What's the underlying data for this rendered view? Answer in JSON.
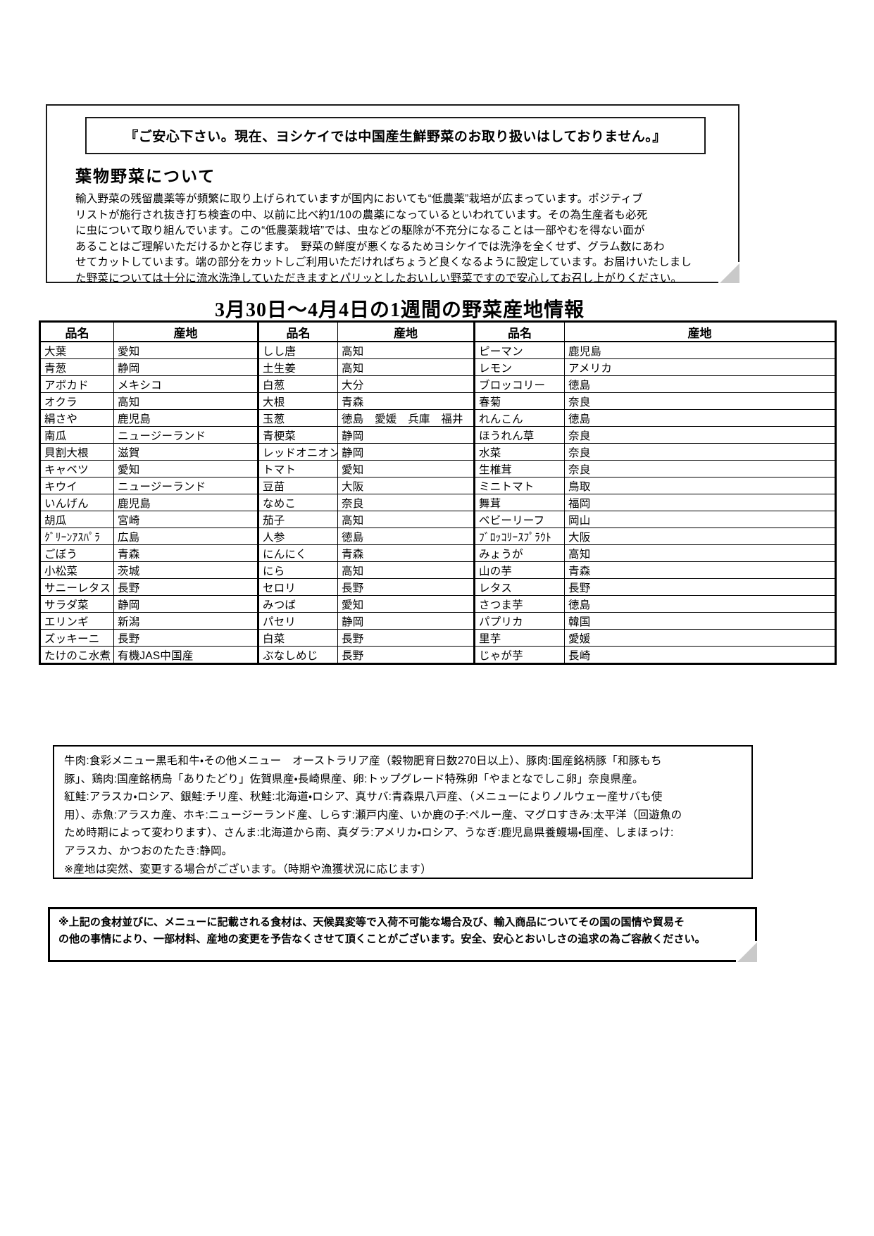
{
  "banner": {
    "text": "『ご安心下さい。現在、ヨシケイでは中国産生鮮野菜のお取り扱いはしておりません。』"
  },
  "intro": {
    "heading": "葉物野菜について",
    "body_lines": [
      "輸入野菜の残留農薬等が頻繁に取り上げられていますが国内においても“低農薬”栽培が広まっています。ポジティブ",
      "リストが施行され抜き打ち検査の中、以前に比べ約1/10の農薬になっているといわれています。その為生産者も必死",
      "に虫について取り組んでいます。この“低農薬栽培”では、虫などの駆除が不充分になることは一部やむを得ない面が",
      "あることはご理解いただけるかと存じます。　野菜の鮮度が悪くなるためヨシケイでは洗浄を全くせず、グラム数にあわ",
      "せてカットしています。端の部分をカットしご利用いただければちょうど良くなるように設定しています。お届けいたしまし",
      "た野菜については十分に流水洗浄していただきますとパリッとしたおいしい野菜ですので安心してお召し上がりください。"
    ]
  },
  "table": {
    "title": "3月30日～4月4日の1週間の野菜産地情報",
    "header_name": "品名",
    "header_origin": "産地",
    "groups": [
      {
        "rows": [
          {
            "name": "大葉",
            "origin": "愛知"
          },
          {
            "name": "青葱",
            "origin": "静岡"
          },
          {
            "name": "アボカド",
            "origin": "メキシコ"
          },
          {
            "name": "オクラ",
            "origin": "高知"
          },
          {
            "name": "絹さや",
            "origin": "鹿児島"
          },
          {
            "name": "南瓜",
            "origin": "ニュージーランド"
          },
          {
            "name": "貝割大根",
            "origin": "滋賀"
          },
          {
            "name": "キャベツ",
            "origin": "愛知"
          },
          {
            "name": "キウイ",
            "origin": "ニュージーランド"
          },
          {
            "name": "いんげん",
            "origin": "鹿児島"
          },
          {
            "name": "胡瓜",
            "origin": "宮崎"
          },
          {
            "name": "ｸﾞﾘｰﾝｱｽﾊﾟﾗ",
            "origin": "広島"
          },
          {
            "name": "ごぼう",
            "origin": "青森"
          },
          {
            "name": "小松菜",
            "origin": "茨城"
          },
          {
            "name": "サニーレタス",
            "origin": "長野"
          },
          {
            "name": "サラダ菜",
            "origin": "静岡"
          },
          {
            "name": "エリンギ",
            "origin": "新潟"
          },
          {
            "name": "ズッキーニ",
            "origin": "長野"
          },
          {
            "name": "たけのこ水煮",
            "origin": "有機JAS中国産"
          }
        ]
      },
      {
        "rows": [
          {
            "name": "しし唐",
            "origin": "高知"
          },
          {
            "name": "土生姜",
            "origin": "高知"
          },
          {
            "name": "白葱",
            "origin": "大分"
          },
          {
            "name": "大根",
            "origin": "青森"
          },
          {
            "name": "玉葱",
            "origin": "徳島　愛媛　兵庫　福井"
          },
          {
            "name": "青梗菜",
            "origin": "静岡"
          },
          {
            "name": "レッドオニオン",
            "origin": "静岡"
          },
          {
            "name": "トマト",
            "origin": "愛知"
          },
          {
            "name": "豆苗",
            "origin": "大阪"
          },
          {
            "name": "なめこ",
            "origin": "奈良"
          },
          {
            "name": "茄子",
            "origin": "高知"
          },
          {
            "name": "人参",
            "origin": "徳島"
          },
          {
            "name": "にんにく",
            "origin": "青森"
          },
          {
            "name": "にら",
            "origin": "高知"
          },
          {
            "name": "セロリ",
            "origin": "長野"
          },
          {
            "name": "みつば",
            "origin": "愛知"
          },
          {
            "name": "パセリ",
            "origin": "静岡"
          },
          {
            "name": "白菜",
            "origin": "長野"
          },
          {
            "name": "ぶなしめじ",
            "origin": "長野"
          }
        ]
      },
      {
        "rows": [
          {
            "name": "ピーマン",
            "origin": "鹿児島"
          },
          {
            "name": "レモン",
            "origin": "アメリカ"
          },
          {
            "name": "ブロッコリー",
            "origin": "徳島"
          },
          {
            "name": "春菊",
            "origin": "奈良"
          },
          {
            "name": "れんこん",
            "origin": "徳島"
          },
          {
            "name": "ほうれん草",
            "origin": "奈良"
          },
          {
            "name": "水菜",
            "origin": "奈良"
          },
          {
            "name": "生椎茸",
            "origin": "奈良"
          },
          {
            "name": "ミニトマト",
            "origin": "鳥取"
          },
          {
            "name": "舞茸",
            "origin": "福岡"
          },
          {
            "name": "ベビーリーフ",
            "origin": "岡山"
          },
          {
            "name": "ﾌﾞﾛｯｺﾘｰｽﾌﾟﾗｳﾄ",
            "origin": "大阪"
          },
          {
            "name": "みょうが",
            "origin": "高知"
          },
          {
            "name": "山の芋",
            "origin": "青森"
          },
          {
            "name": "レタス",
            "origin": "長野"
          },
          {
            "name": "さつま芋",
            "origin": "徳島"
          },
          {
            "name": "パプリカ",
            "origin": "韓国"
          },
          {
            "name": "里芋",
            "origin": "愛媛"
          },
          {
            "name": "じゃが芋",
            "origin": "長崎"
          }
        ]
      }
    ]
  },
  "notes": {
    "lines": [
      "牛肉:食彩メニュー黒毛和牛・その他メニュー　オーストラリア産（穀物肥育日数270日以上）、豚肉:国産銘柄豚「和豚もち",
      "豚」、鶏肉:国産銘柄鳥「ありたどり」佐賀県産・長崎県産、卵:トップグレード特殊卵「やまとなでしこ卵」奈良県産。",
      "紅鮭:アラスカ・ロシア、銀鮭:チリ産、秋鮭:北海道・ロシア、真サバ:青森県八戸産、（メニューによりノルウェー産サバも使",
      "用）、赤魚:アラスカ産、ホキ:ニュージーランド産、しらす:瀬戸内産、いか鹿の子:ペルー産、マグロすきみ:太平洋（回遊魚の",
      "ため時期によって変わります）、さんま:北海道から南、真ダラ:アメリカ・ロシア、うなぎ:鹿児島県養鰻場・国産、しまほっけ:",
      "アラスカ、かつおのたたき:静岡。",
      "※産地は突然、変更する場合がございます。（時期や漁獲状況に応じます）"
    ]
  },
  "disclaimer": {
    "lines": [
      "※上記の食材並びに、メニューに記載される食材は、天候異変等で入荷不可能な場合及び、輸入商品についてその国の国情や貿易そ",
      "の他の事情により、一部材料、産地の変更を予告なくさせて頂くことがございます。安全、安心とおいしさの追求の為ご容赦ください。"
    ]
  }
}
